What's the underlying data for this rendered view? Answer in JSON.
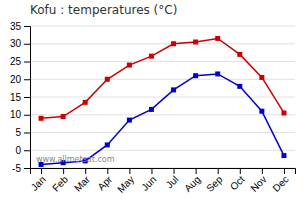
{
  "chart_data": {
    "type": "line",
    "title": "Kofu : temperatures (°C)",
    "categories": [
      "Jan",
      "Feb",
      "Mar",
      "Apr",
      "May",
      "Jun",
      "Jul",
      "Aug",
      "Sep",
      "Oct",
      "Nov",
      "Dec"
    ],
    "series": [
      {
        "color": "#cc0000",
        "marker": "square",
        "values": [
          9.0,
          9.5,
          13.5,
          20.0,
          24.0,
          26.5,
          30.0,
          30.5,
          31.5,
          27.0,
          20.5,
          10.5
        ]
      },
      {
        "color": "#0000cc",
        "marker": "square",
        "values": [
          -4.0,
          -3.5,
          -3.0,
          1.5,
          8.5,
          11.5,
          17.0,
          21.0,
          21.5,
          18.0,
          11.0,
          -1.5
        ]
      }
    ],
    "ylim": [
      -5,
      35
    ],
    "yticks": [
      -5,
      0,
      5,
      10,
      15,
      20,
      25,
      30,
      35
    ],
    "grid": true,
    "annotations": [
      "www.allmetsat.com"
    ]
  }
}
